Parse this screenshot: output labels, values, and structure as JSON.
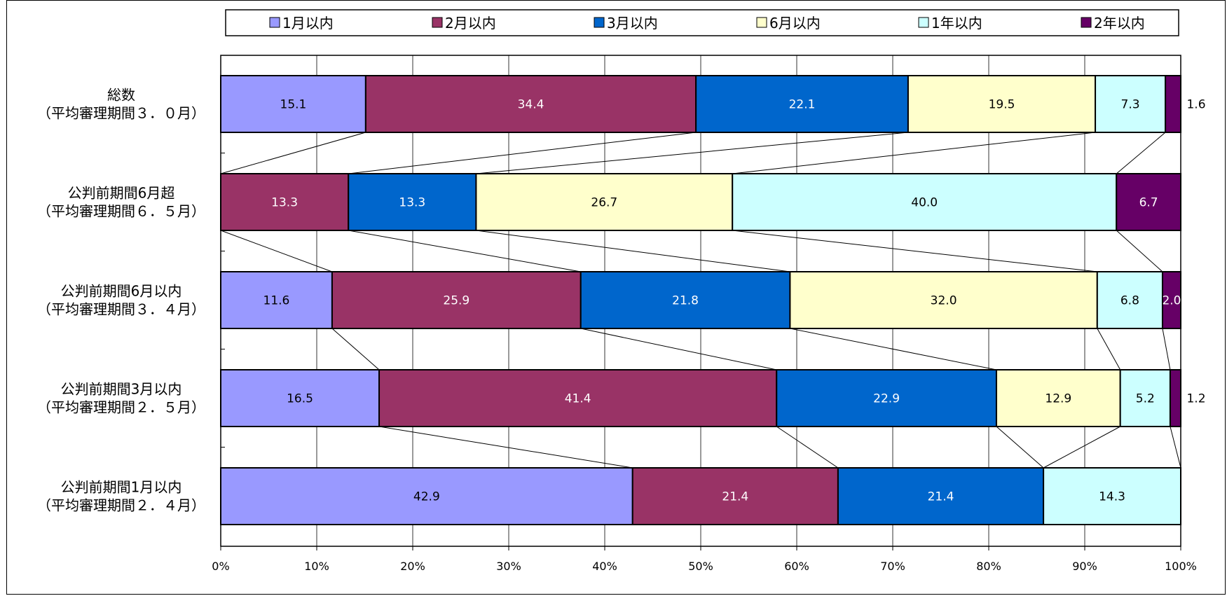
{
  "chart_data": {
    "type": "bar",
    "orientation": "horizontal",
    "stacked": true,
    "normalized_percent": true,
    "categories": [
      {
        "line1": "総数",
        "line2": "（平均審理期間３．０月）"
      },
      {
        "line1": "公判前期間6月超",
        "line2": "（平均審理期間６．５月）"
      },
      {
        "line1": "公判前期間6月以内",
        "line2": "（平均審理期間３．４月）"
      },
      {
        "line1": "公判前期間3月以内",
        "line2": "（平均審理期間２．５月）"
      },
      {
        "line1": "公判前期間1月以内",
        "line2": "（平均審理期間２．４月）"
      }
    ],
    "series": [
      {
        "name": "1月以内",
        "color": "#9999FF",
        "label_color": "#000000",
        "values": [
          15.1,
          0,
          11.6,
          16.5,
          42.9
        ]
      },
      {
        "name": "2月以内",
        "color": "#993366",
        "label_color": "#FFFFFF",
        "values": [
          34.4,
          13.3,
          25.9,
          41.4,
          21.4
        ]
      },
      {
        "name": "3月以内",
        "color": "#0066CC",
        "label_color": "#FFFFFF",
        "values": [
          22.1,
          13.3,
          21.8,
          22.9,
          21.4
        ]
      },
      {
        "name": "6月以内",
        "color": "#FFFFCC",
        "label_color": "#000000",
        "values": [
          19.5,
          26.7,
          32.0,
          12.9,
          0
        ]
      },
      {
        "name": "1年以内",
        "color": "#CCFFFF",
        "label_color": "#000000",
        "values": [
          7.3,
          40.0,
          6.8,
          5.2,
          14.3
        ]
      },
      {
        "name": "2年以内",
        "color": "#660066",
        "label_color": "#FFFFFF",
        "values": [
          1.6,
          6.7,
          2.0,
          1.2,
          0
        ]
      }
    ],
    "x_ticks": [
      "0%",
      "10%",
      "20%",
      "30%",
      "40%",
      "50%",
      "60%",
      "70%",
      "80%",
      "90%",
      "100%"
    ],
    "xlim": [
      0,
      100
    ],
    "grid": true,
    "series_connector_lines": true,
    "legend_position": "top"
  }
}
